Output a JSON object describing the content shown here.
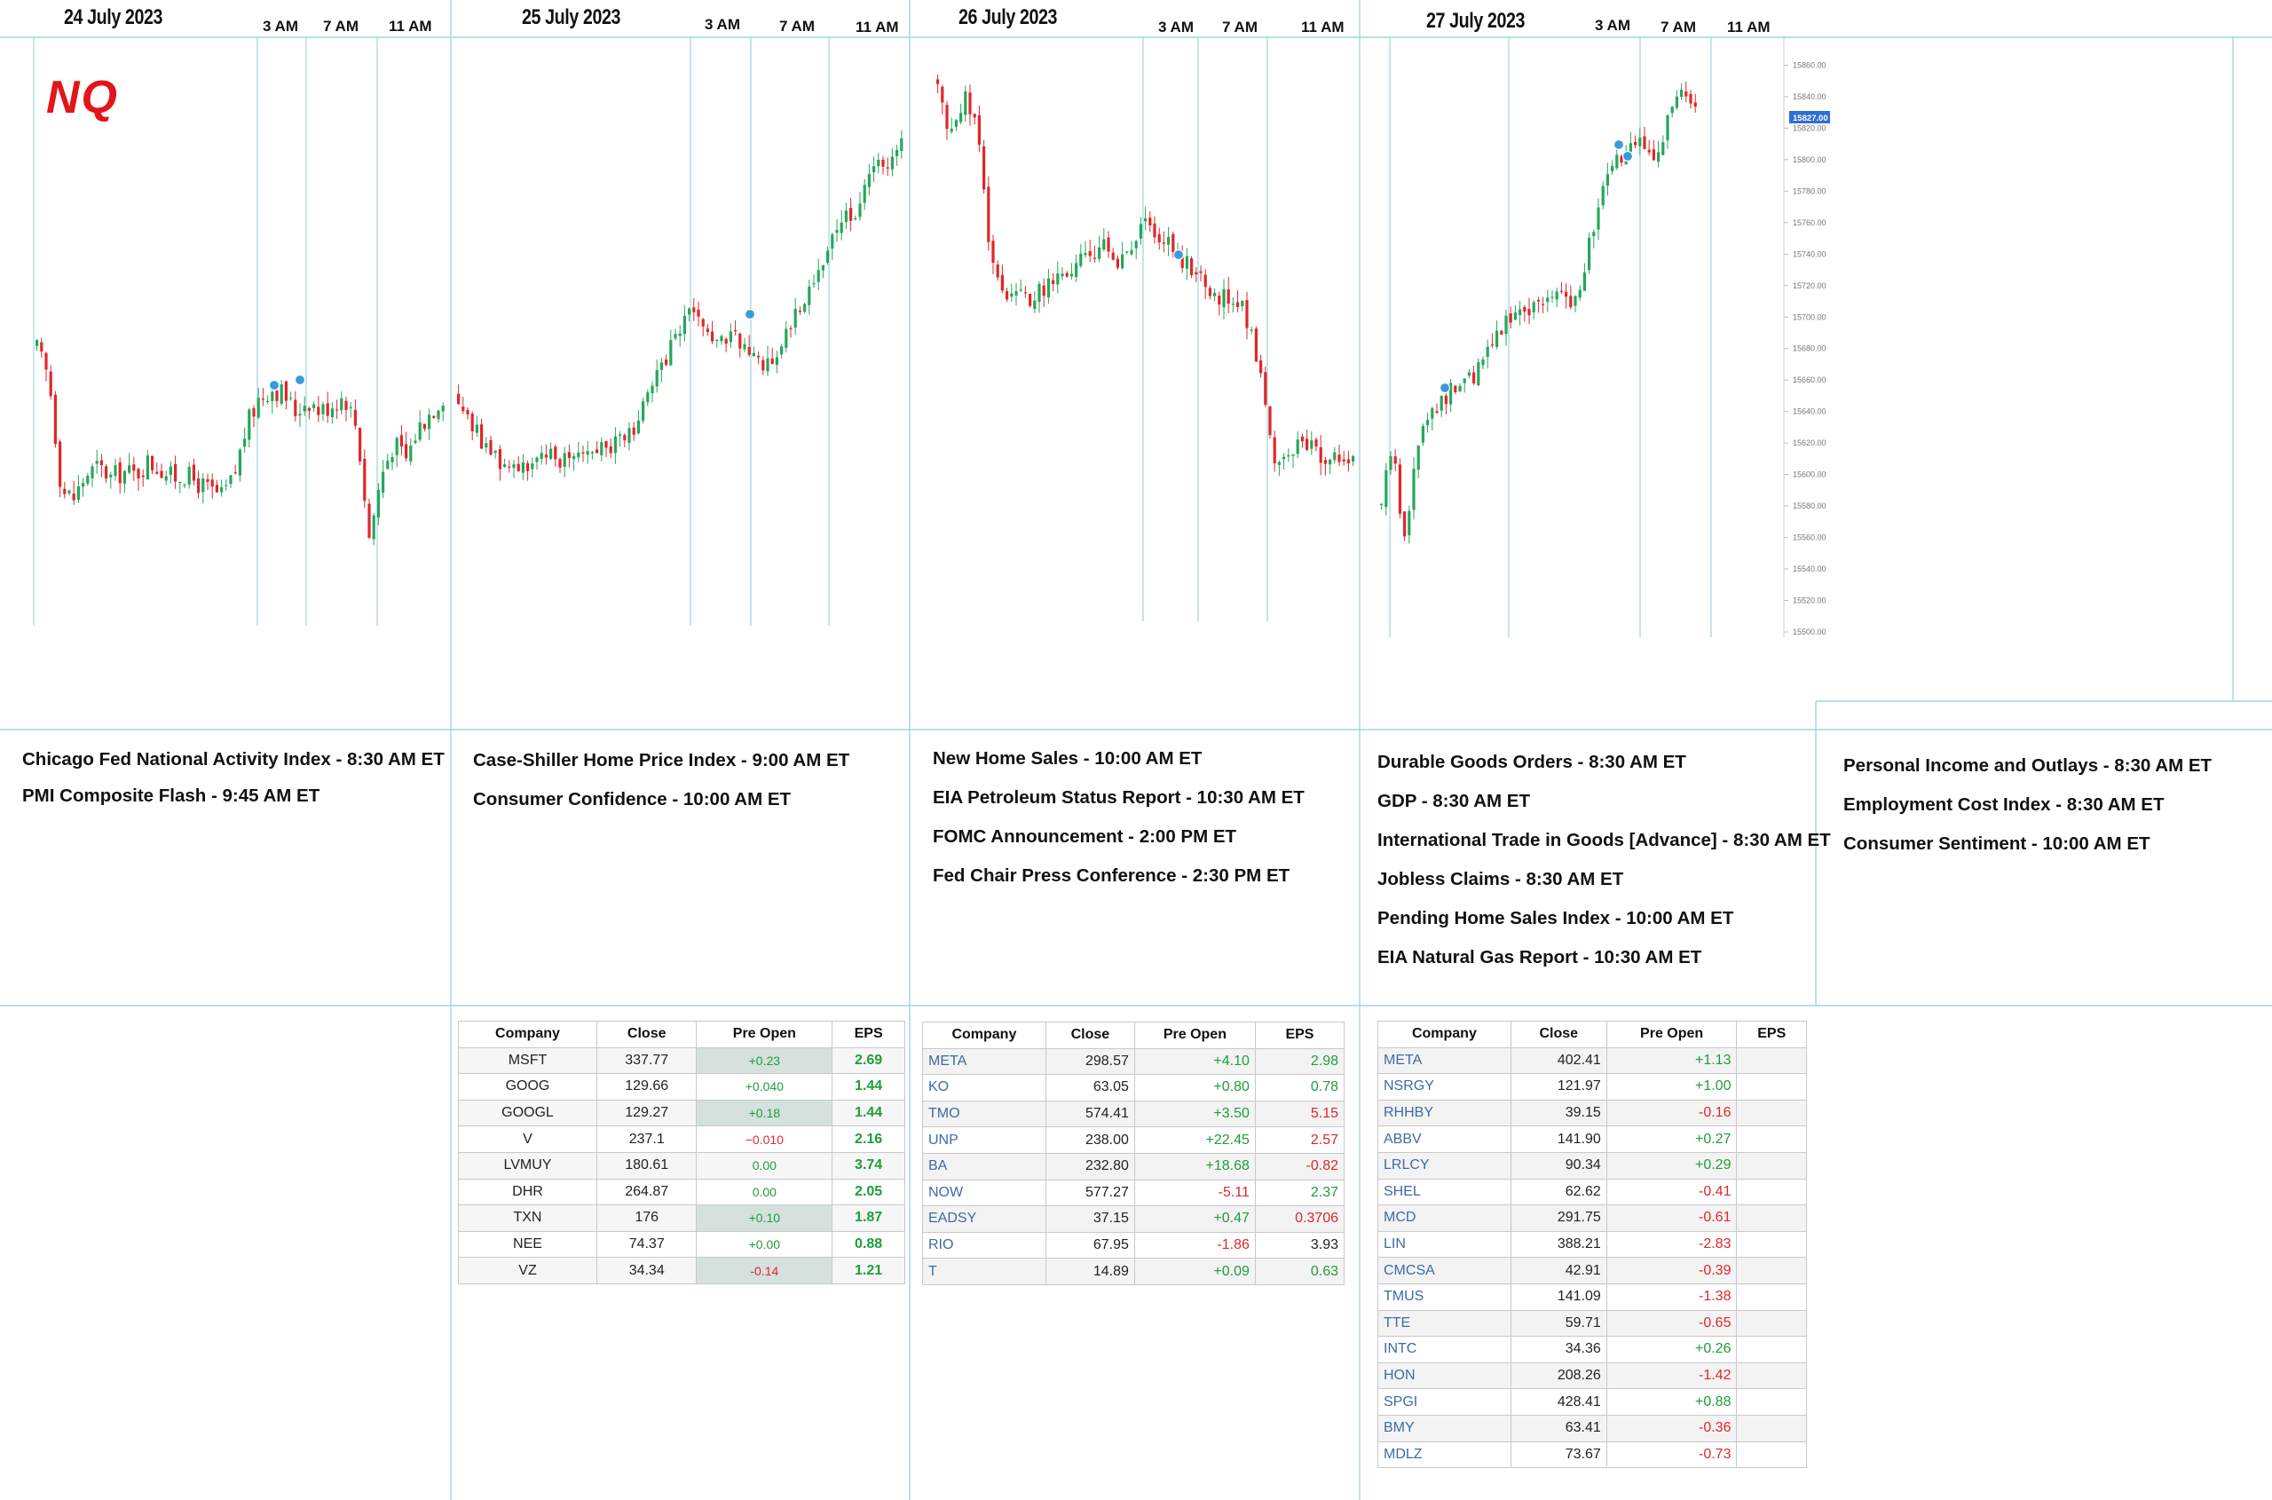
{
  "logo": "NQ",
  "days": [
    {
      "date": "24 July 2023",
      "times": [
        "3 AM",
        "7 AM",
        "11 AM"
      ]
    },
    {
      "date": "25 July 2023",
      "times": [
        "3 AM",
        "7 AM",
        "11 AM"
      ]
    },
    {
      "date": "26 July 2023",
      "times": [
        "3 AM",
        "7 AM",
        "11 AM"
      ]
    },
    {
      "date": "27 July 2023",
      "times": [
        "3 AM",
        "7 AM",
        "11 AM"
      ]
    }
  ],
  "price_axis": {
    "current_price": "15827.00",
    "ticks": [
      "15500.00",
      "15520.00",
      "15540.00",
      "15560.00",
      "15580.00",
      "15600.00",
      "15620.00",
      "15640.00",
      "15660.00",
      "15680.00",
      "15700.00",
      "15720.00",
      "15740.00",
      "15760.00",
      "15780.00",
      "15800.00",
      "15820.00",
      "15840.00",
      "15860.00",
      "15880.00"
    ]
  },
  "events": [
    [
      "Chicago Fed National Activity Index -  8:30 AM ET",
      "PMI Composite Flash - 9:45 AM ET"
    ],
    [
      "Case-Shiller Home Price Index - 9:00 AM ET",
      "Consumer Confidence - 10:00 AM ET"
    ],
    [
      "New Home Sales - 10:00 AM ET",
      "EIA Petroleum Status Report - 10:30 AM ET",
      "FOMC Announcement - 2:00 PM ET",
      "Fed Chair Press Conference - 2:30 PM ET"
    ],
    [
      "Durable Goods Orders - 8:30 AM ET",
      "GDP - 8:30 AM ET",
      "International Trade in Goods [Advance] - 8:30 AM ET",
      "Jobless Claims - 8:30 AM ET",
      "Pending Home Sales Index - 10:00 AM ET",
      "EIA Natural Gas Report - 10:30 AM ET"
    ],
    [
      "Personal Income and Outlays - 8:30 AM ET",
      "Employment Cost Index - 8:30 AM ET",
      "Consumer Sentiment - 10:00 AM ET"
    ]
  ],
  "tables": [
    {
      "headers": [
        "Company",
        "Close",
        "Pre Open",
        "EPS"
      ],
      "rows": [
        [
          "MSFT",
          "337.77",
          "+0.23",
          "2.69"
        ],
        [
          "GOOG",
          "129.66",
          "+0.040",
          "1.44"
        ],
        [
          "GOOGL",
          "129.27",
          "+0.18",
          "1.44"
        ],
        [
          "V",
          "237.1",
          "−0.010",
          "2.16"
        ],
        [
          "LVMUY",
          "180.61",
          "0.00",
          "3.74"
        ],
        [
          "DHR",
          "264.87",
          "0.00",
          "2.05"
        ],
        [
          "TXN",
          "176",
          "+0.10",
          "1.87"
        ],
        [
          "NEE",
          "74.37",
          "+0.00",
          "0.88"
        ],
        [
          "VZ",
          "34.34",
          "-0.14",
          "1.21"
        ]
      ]
    },
    {
      "headers": [
        "Company",
        "Close",
        "Pre Open",
        "EPS"
      ],
      "rows": [
        [
          "META",
          "298.57",
          "+4.10",
          "2.98"
        ],
        [
          "KO",
          "63.05",
          "+0.80",
          "0.78"
        ],
        [
          "TMO",
          "574.41",
          "+3.50",
          "5.15"
        ],
        [
          "UNP",
          "238.00",
          "+22.45",
          "2.57"
        ],
        [
          "BA",
          "232.80",
          "+18.68",
          "-0.82"
        ],
        [
          "NOW",
          "577.27",
          "-5.11",
          "2.37"
        ],
        [
          "EADSY",
          "37.15",
          "+0.47",
          "0.3706"
        ],
        [
          "RIO",
          "67.95",
          "-1.86",
          "3.93"
        ],
        [
          "T",
          "14.89",
          "+0.09",
          "0.63"
        ]
      ]
    },
    {
      "headers": [
        "Company",
        "Close",
        "Pre Open",
        "EPS"
      ],
      "rows": [
        [
          "META",
          "402.41",
          "+1.13",
          ""
        ],
        [
          "NSRGY",
          "121.97",
          "+1.00",
          ""
        ],
        [
          "RHHBY",
          "39.15",
          "-0.16",
          ""
        ],
        [
          "ABBV",
          "141.90",
          "+0.27",
          ""
        ],
        [
          "LRLCY",
          "90.34",
          "+0.29",
          ""
        ],
        [
          "SHEL",
          "62.62",
          "-0.41",
          ""
        ],
        [
          "MCD",
          "291.75",
          "-0.61",
          ""
        ],
        [
          "LIN",
          "388.21",
          "-2.83",
          ""
        ],
        [
          "CMCSA",
          "42.91",
          "-0.39",
          ""
        ],
        [
          "TMUS",
          "141.09",
          "-1.38",
          ""
        ],
        [
          "TTE",
          "59.71",
          "-0.65",
          ""
        ],
        [
          "INTC",
          "34.36",
          "+0.26",
          ""
        ],
        [
          "HON",
          "208.26",
          "-1.42",
          ""
        ],
        [
          "SPGI",
          "428.41",
          "+0.88",
          ""
        ],
        [
          "BMY",
          "63.41",
          "-0.36",
          ""
        ],
        [
          "MDLZ",
          "73.67",
          "-0.73",
          ""
        ]
      ]
    }
  ],
  "chart_data": {
    "type": "candlestick",
    "title": "NQ",
    "xlabel": "",
    "ylabel": "",
    "ylim": [
      15500,
      15880
    ],
    "grid": true,
    "colors": {
      "up": "#26a65b",
      "down": "#e0262b",
      "marker": "#3a9bd9",
      "price_tag": "#2f6ed6"
    },
    "x_days": [
      "24 July 2023",
      "25 July 2023",
      "26 July 2023",
      "27 July 2023"
    ],
    "series": [
      {
        "day": "24 July 2023",
        "path": [
          15680,
          15660,
          15590,
          15585,
          15600,
          15605,
          15598,
          15602,
          15600,
          15608,
          15604,
          15598,
          15600,
          15595,
          15590,
          15586,
          15598,
          15630,
          15648,
          15655,
          15652,
          15640,
          15648,
          15640,
          15645,
          15650,
          15630,
          15560,
          15600,
          15620,
          15610,
          15630,
          15640,
          15650
        ]
      },
      {
        "day": "25 July 2023",
        "path": [
          15650,
          15630,
          15615,
          15605,
          15608,
          15606,
          15610,
          15612,
          15615,
          15620,
          15618,
          15624,
          15640,
          15660,
          15685,
          15700,
          15695,
          15680,
          15690,
          15675,
          15670,
          15680,
          15700,
          15720,
          15740,
          15760,
          15770,
          15790,
          15800,
          15810
        ]
      },
      {
        "day": "26 July 2023",
        "path": [
          15850,
          15810,
          15840,
          15830,
          15750,
          15720,
          15715,
          15712,
          15716,
          15720,
          15728,
          15730,
          15740,
          15745,
          15738,
          15735,
          15752,
          15760,
          15750,
          15740,
          15735,
          15725,
          15710,
          15715,
          15708,
          15690,
          15650,
          15600,
          15612,
          15620,
          15615,
          15605,
          15610,
          15615
        ]
      },
      {
        "day": "27 July 2023",
        "path": [
          15580,
          15620,
          15560,
          15600,
          15640,
          15645,
          15650,
          15655,
          15660,
          15665,
          15680,
          15695,
          15700,
          15705,
          15708,
          15712,
          15715,
          15710,
          15715,
          15740,
          15770,
          15790,
          15800,
          15805,
          15810,
          15805,
          15815,
          15835,
          15840,
          15827
        ]
      }
    ],
    "price_axis_ticks": [
      15500,
      15520,
      15540,
      15560,
      15580,
      15600,
      15620,
      15640,
      15660,
      15680,
      15700,
      15720,
      15740,
      15760,
      15780,
      15800,
      15820,
      15840,
      15860,
      15880
    ],
    "current_price": 15827.0
  }
}
